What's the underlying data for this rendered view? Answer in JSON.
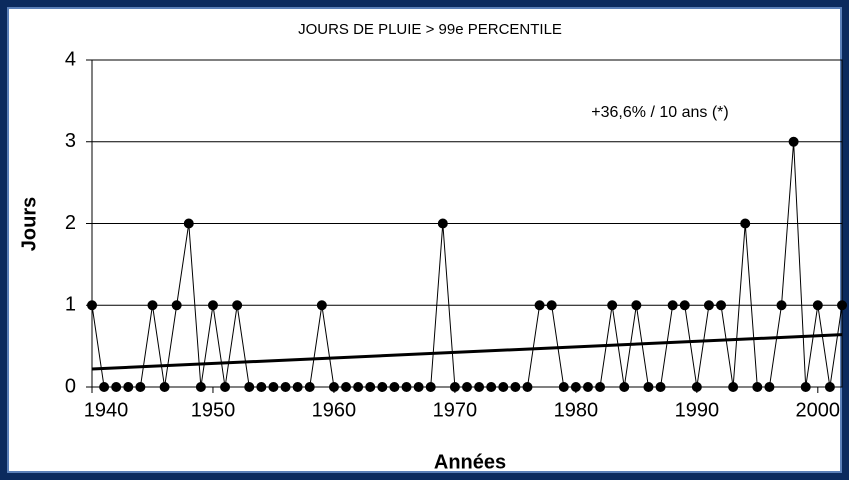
{
  "chart_data": {
    "type": "line",
    "title": "JOURS DE PLUIE > 99e PERCENTILE",
    "annotation": "+36,6% / 10 ans (*)",
    "x_label": "Années",
    "y_label": "Jours",
    "x": [
      1940,
      1941,
      1942,
      1943,
      1944,
      1945,
      1946,
      1947,
      1948,
      1949,
      1950,
      1951,
      1952,
      1953,
      1954,
      1955,
      1956,
      1957,
      1958,
      1959,
      1960,
      1961,
      1962,
      1963,
      1964,
      1965,
      1966,
      1967,
      1968,
      1969,
      1970,
      1971,
      1972,
      1973,
      1974,
      1975,
      1976,
      1977,
      1978,
      1979,
      1980,
      1981,
      1982,
      1983,
      1984,
      1985,
      1986,
      1987,
      1988,
      1989,
      1990,
      1991,
      1992,
      1993,
      1994,
      1995,
      1996,
      1997,
      1998,
      1999,
      2000,
      2001,
      2002
    ],
    "values": [
      1,
      0,
      0,
      0,
      0,
      1,
      0,
      1,
      2,
      0,
      1,
      0,
      1,
      0,
      0,
      0,
      0,
      0,
      0,
      1,
      0,
      0,
      0,
      0,
      0,
      0,
      0,
      0,
      0,
      2,
      0,
      0,
      0,
      0,
      0,
      0,
      0,
      1,
      1,
      0,
      0,
      0,
      0,
      1,
      0,
      1,
      0,
      0,
      1,
      1,
      0,
      1,
      1,
      0,
      2,
      0,
      0,
      1,
      3,
      0,
      1,
      0,
      1
    ],
    "color": "#000000",
    "trend": {
      "x": [
        1940,
        2002
      ],
      "values": [
        0.22,
        0.64
      ]
    },
    "xlim": [
      1940,
      2002
    ],
    "xticks": [
      1940,
      1950,
      1960,
      1970,
      1980,
      1990,
      2000
    ],
    "ylim": [
      0,
      4
    ],
    "yticks": [
      0,
      1,
      2,
      3,
      4
    ],
    "grid": true
  }
}
